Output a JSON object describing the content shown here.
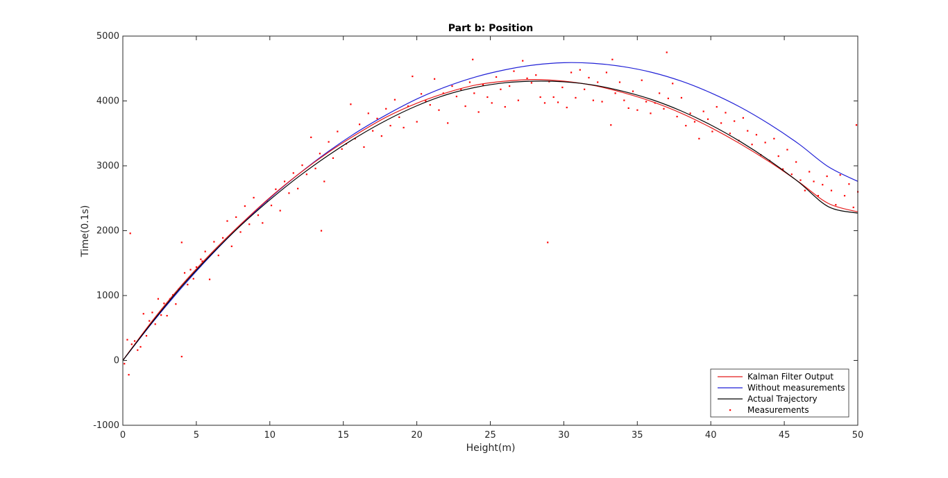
{
  "chart_data": {
    "type": "line",
    "title": "Part b: Position",
    "xlabel": "Height(m)",
    "ylabel": "Time(0.1s)",
    "xlim": [
      0,
      50
    ],
    "ylim": [
      -1000,
      5000
    ],
    "xticks": [
      0,
      5,
      10,
      15,
      20,
      25,
      30,
      35,
      40,
      45,
      50
    ],
    "yticks": [
      -1000,
      0,
      1000,
      2000,
      3000,
      4000,
      5000
    ],
    "grid": false,
    "legend_position": "bottom-right",
    "series": [
      {
        "name": "Kalman Filter Output",
        "style": "line",
        "color": "#e41a1a",
        "x": [
          0,
          2,
          4,
          6,
          8,
          10,
          12,
          14,
          16,
          18,
          20,
          22,
          24,
          26,
          28,
          30,
          32,
          34,
          36,
          38,
          40,
          42,
          44,
          46,
          48,
          50
        ],
        "y": [
          0,
          610,
          1160,
          1650,
          2095,
          2510,
          2880,
          3210,
          3500,
          3760,
          3965,
          4125,
          4245,
          4305,
          4330,
          4305,
          4240,
          4130,
          3990,
          3810,
          3590,
          3340,
          3060,
          2750,
          2420,
          2290
        ]
      },
      {
        "name": "Without measurements",
        "style": "line",
        "color": "#1f1fd6",
        "x": [
          0,
          2,
          4,
          6,
          8,
          10,
          12,
          14,
          16,
          18,
          20,
          22,
          24,
          26,
          28,
          30,
          32,
          34,
          36,
          38,
          40,
          42,
          44,
          46,
          48,
          50
        ],
        "y": [
          0,
          580,
          1120,
          1620,
          2080,
          2500,
          2880,
          3225,
          3530,
          3795,
          4030,
          4220,
          4370,
          4480,
          4555,
          4590,
          4580,
          4530,
          4440,
          4305,
          4125,
          3905,
          3640,
          3335,
          2985,
          2760
        ]
      },
      {
        "name": "Actual Trajectory",
        "style": "line",
        "color": "#000000",
        "x": [
          0,
          2,
          4,
          6,
          8,
          10,
          12,
          14,
          16,
          18,
          20,
          22,
          24,
          26,
          28,
          30,
          32,
          34,
          36,
          38,
          40,
          42,
          44,
          46,
          48,
          50
        ],
        "y": [
          0,
          590,
          1140,
          1630,
          2075,
          2475,
          2840,
          3165,
          3455,
          3710,
          3925,
          4095,
          4210,
          4280,
          4305,
          4295,
          4245,
          4150,
          4020,
          3845,
          3630,
          3375,
          3080,
          2745,
          2370,
          2270
        ]
      },
      {
        "name": "Measurements",
        "style": "scatter",
        "color": "#ff0000",
        "x": [
          0.1,
          0.3,
          0.4,
          0.6,
          0.8,
          1.0,
          1.2,
          1.4,
          1.6,
          1.8,
          2.0,
          2.2,
          2.4,
          2.6,
          2.8,
          3.0,
          3.2,
          3.4,
          3.6,
          3.8,
          4.0,
          4.2,
          4.4,
          4.6,
          4.8,
          5.0,
          5.3,
          5.6,
          5.9,
          6.2,
          6.5,
          6.8,
          7.1,
          7.4,
          7.7,
          8.0,
          8.3,
          8.6,
          8.9,
          9.2,
          9.5,
          9.8,
          10.1,
          10.4,
          10.7,
          11.0,
          11.3,
          11.6,
          11.9,
          12.2,
          12.5,
          12.8,
          13.1,
          13.4,
          13.7,
          14.0,
          14.3,
          14.6,
          14.9,
          15.2,
          15.5,
          15.8,
          16.1,
          16.4,
          16.7,
          17.0,
          17.3,
          17.6,
          17.9,
          18.2,
          18.5,
          18.8,
          19.1,
          19.4,
          19.7,
          20.0,
          20.3,
          20.6,
          20.9,
          21.2,
          21.5,
          21.8,
          22.1,
          22.4,
          22.7,
          23.0,
          23.3,
          23.6,
          23.9,
          24.2,
          24.5,
          24.8,
          25.1,
          25.4,
          25.7,
          26.0,
          26.3,
          26.6,
          26.9,
          27.2,
          27.5,
          27.8,
          28.1,
          28.4,
          28.7,
          29.0,
          29.3,
          29.6,
          29.9,
          30.2,
          30.5,
          30.8,
          31.1,
          31.4,
          31.7,
          32.0,
          32.3,
          32.6,
          32.9,
          33.2,
          33.5,
          33.8,
          34.1,
          34.4,
          34.7,
          35.0,
          35.3,
          35.6,
          35.9,
          36.2,
          36.5,
          36.8,
          37.1,
          37.4,
          37.7,
          38.0,
          38.3,
          38.6,
          38.9,
          39.2,
          39.5,
          39.8,
          40.1,
          40.4,
          40.7,
          41.0,
          41.3,
          41.6,
          41.9,
          42.2,
          42.5,
          42.8,
          43.1,
          43.4,
          43.7,
          44.0,
          44.3,
          44.6,
          44.9,
          45.2,
          45.5,
          45.8,
          46.1,
          46.4,
          46.7,
          47.0,
          47.3,
          47.6,
          47.9,
          48.2,
          48.5,
          48.8,
          49.1,
          49.4,
          49.7,
          50.0,
          0.5,
          4.0,
          28.9,
          37.0,
          33.3,
          49.9,
          13.5,
          5.4,
          23.8
        ],
        "y": [
          -50,
          320,
          -220,
          250,
          300,
          160,
          210,
          720,
          380,
          610,
          740,
          560,
          950,
          700,
          880,
          690,
          950,
          1010,
          870,
          1100,
          1820,
          1350,
          1170,
          1400,
          1260,
          1440,
          1560,
          1680,
          1250,
          1830,
          1620,
          1890,
          2150,
          1760,
          2210,
          1980,
          2380,
          2100,
          2510,
          2240,
          2120,
          2460,
          2390,
          2640,
          2310,
          2760,
          2580,
          2890,
          2650,
          3010,
          2870,
          3440,
          2960,
          3190,
          2760,
          3370,
          3120,
          3530,
          3260,
          3340,
          3950,
          3420,
          3640,
          3290,
          3810,
          3540,
          3730,
          3460,
          3880,
          3620,
          4020,
          3750,
          3590,
          3920,
          4380,
          3680,
          4110,
          4000,
          3940,
          4340,
          3860,
          4120,
          3660,
          4230,
          4070,
          4180,
          3920,
          4290,
          4120,
          3830,
          4250,
          4060,
          3970,
          4370,
          4180,
          3910,
          4230,
          4460,
          4010,
          4620,
          4350,
          4280,
          4400,
          4060,
          3970,
          4300,
          4060,
          3980,
          4210,
          3900,
          4440,
          4050,
          4480,
          4180,
          4360,
          4010,
          4290,
          3990,
          4440,
          3630,
          4120,
          4290,
          4010,
          3890,
          4150,
          3860,
          4320,
          3990,
          3810,
          3970,
          4120,
          3880,
          4040,
          4270,
          3760,
          4050,
          3620,
          3810,
          3680,
          3420,
          3840,
          3720,
          3530,
          3910,
          3660,
          3820,
          3500,
          3690,
          3390,
          3740,
          3540,
          3330,
          3480,
          3170,
          3360,
          3080,
          3420,
          3150,
          2950,
          3250,
          2870,
          3060,
          2780,
          2620,
          2910,
          2760,
          2540,
          2710,
          2840,
          2620,
          2400,
          2860,
          2540,
          2720,
          2360,
          2600,
          1960,
          60,
          1820,
          4750,
          4640,
          3630,
          2000,
          1530,
          4640
        ]
      }
    ]
  }
}
